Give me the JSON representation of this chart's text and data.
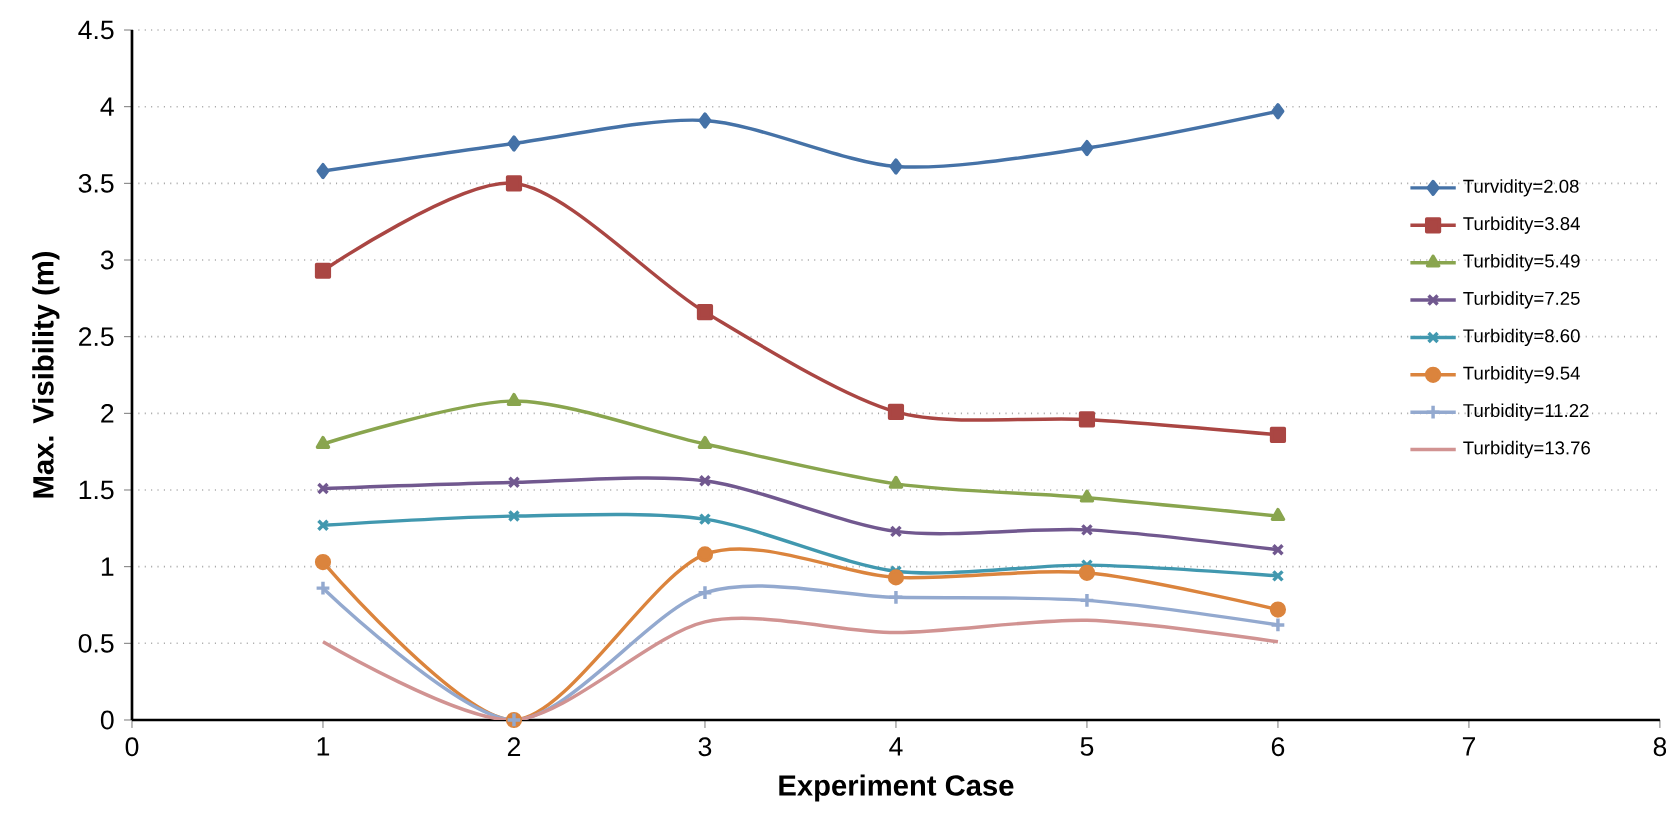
{
  "chart_data": {
    "type": "line",
    "xlabel": "Experiment Case",
    "ylabel": "Max. Visibility (m)",
    "x": [
      1,
      2,
      3,
      4,
      5,
      6
    ],
    "xlim": [
      0,
      8
    ],
    "xticks": [
      0,
      1,
      2,
      3,
      4,
      5,
      6,
      7,
      8
    ],
    "ylim": [
      0,
      4.5
    ],
    "yticks": [
      0,
      0.5,
      1,
      1.5,
      2,
      2.5,
      3,
      3.5,
      4,
      4.5
    ],
    "grid": "y",
    "legend": "right",
    "line_style": "solid",
    "series": [
      {
        "name": "Turvidity=2.08",
        "color": "#4572a7",
        "marker": "diamond",
        "values": [
          3.58,
          3.76,
          3.91,
          3.61,
          3.73,
          3.97
        ]
      },
      {
        "name": "Turbidity=3.84",
        "color": "#aa4643",
        "marker": "square",
        "values": [
          2.93,
          3.5,
          2.66,
          2.01,
          1.96,
          1.86
        ]
      },
      {
        "name": "Turbidity=5.49",
        "color": "#89a54e",
        "marker": "triangle",
        "values": [
          1.8,
          2.08,
          1.8,
          1.54,
          1.45,
          1.33
        ]
      },
      {
        "name": "Turbidity=7.25",
        "color": "#71588f",
        "marker": "cross",
        "values": [
          1.51,
          1.55,
          1.56,
          1.23,
          1.24,
          1.11
        ]
      },
      {
        "name": "Turbidity=8.60",
        "color": "#4198af",
        "marker": "cross",
        "values": [
          1.27,
          1.33,
          1.31,
          0.97,
          1.01,
          0.94
        ]
      },
      {
        "name": "Turbidity=9.54",
        "color": "#db843d",
        "marker": "circle",
        "values": [
          1.03,
          0,
          1.08,
          0.93,
          0.96,
          0.72
        ]
      },
      {
        "name": "Turbidity=11.22",
        "color": "#93a9cf",
        "marker": "plus",
        "values": [
          0.86,
          0,
          0.83,
          0.8,
          0.78,
          0.62
        ]
      },
      {
        "name": "Turbidity=13.76",
        "color": "#d19392",
        "marker": "none",
        "values": [
          0.51,
          0,
          0.64,
          0.57,
          0.65,
          0.51
        ]
      }
    ]
  }
}
